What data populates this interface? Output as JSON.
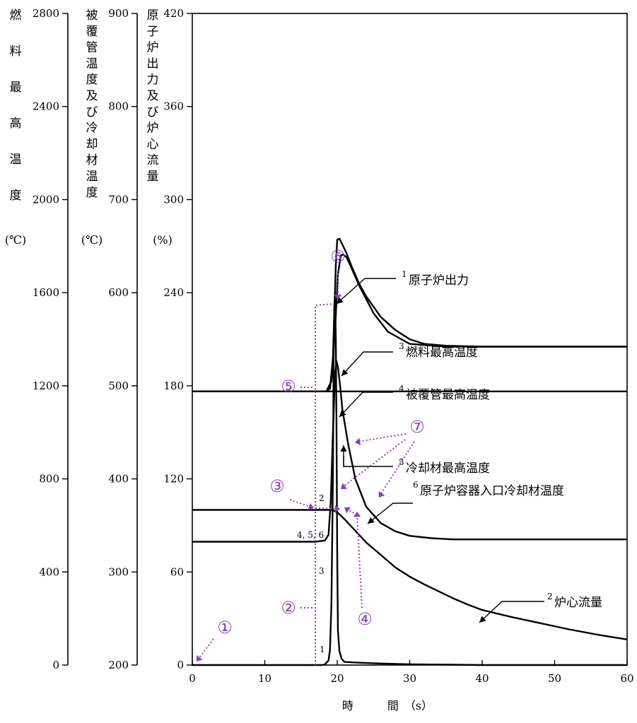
{
  "chart_data": {
    "type": "line",
    "xlabel": "時　　　間　（s）",
    "xlim": [
      0,
      60
    ],
    "x_ticks": [
      "0",
      "10",
      "20",
      "30",
      "40",
      "50",
      "60"
    ],
    "axes": {
      "fuel_temp": {
        "label": [
          "燃",
          "料",
          "最",
          "高",
          "温",
          "度"
        ],
        "unit": "(℃)",
        "range": [
          0,
          2800
        ],
        "ticks": [
          "0",
          "400",
          "800",
          "1200",
          "1600",
          "2000",
          "2400",
          "2800"
        ]
      },
      "clad_temp": {
        "label": [
          "被",
          "覆",
          "管",
          "温",
          "度",
          "及",
          "び",
          "冷",
          "却",
          "材",
          "温",
          "度"
        ],
        "unit": "(℃)",
        "range": [
          200,
          900
        ],
        "ticks": [
          "200",
          "300",
          "400",
          "500",
          "600",
          "700",
          "800",
          "900"
        ]
      },
      "power_flow": {
        "label": [
          "原",
          "子",
          "炉",
          "出",
          "力",
          "及",
          "び",
          "炉",
          "心",
          "流",
          "量"
        ],
        "unit": "(%)",
        "range": [
          0,
          420
        ],
        "ticks": [
          "0",
          "60",
          "120",
          "180",
          "240",
          "300",
          "360",
          "420"
        ]
      }
    },
    "series": [
      {
        "name": "原子炉出力",
        "num": "1",
        "axis": "power_flow",
        "x": [
          0,
          17.9,
          18.3,
          18.8,
          19.0,
          19.2,
          19.4,
          19.5,
          19.6,
          19.7,
          19.8,
          19.9,
          20.0,
          20.1,
          20.3,
          20.6,
          21,
          23,
          26,
          30,
          40,
          60
        ],
        "y": [
          0,
          0,
          0.4,
          3,
          10,
          40,
          120,
          197,
          232,
          236,
          210,
          150,
          70,
          22,
          9,
          4,
          2,
          1.5,
          1,
          0.5,
          0,
          0
        ]
      },
      {
        "name": "炉心流量",
        "num": "2",
        "axis": "power_flow",
        "x": [
          0,
          18.5,
          19.3,
          20,
          21,
          22,
          23,
          24,
          25,
          26,
          27,
          28,
          30,
          32,
          34,
          36,
          38,
          40,
          44,
          48,
          52,
          56,
          60
        ],
        "y": [
          100,
          100,
          100,
          98.5,
          94,
          89,
          84,
          79,
          75,
          71,
          67,
          63,
          57,
          52,
          47.5,
          43,
          39,
          35.5,
          31,
          27,
          23,
          19.5,
          16.5
        ]
      },
      {
        "name": "燃料最高温度",
        "num": "3",
        "axis": "fuel_temp",
        "x": [
          0,
          17,
          18.3,
          18.8,
          19.1,
          19.4,
          19.7,
          19.9,
          20.1,
          20.4,
          20.7,
          21.5,
          22.5,
          24,
          26,
          28,
          30,
          33,
          36,
          40,
          50,
          60
        ],
        "y": [
          530,
          530,
          535,
          560,
          700,
          1000,
          1250,
          1305,
          1280,
          1200,
          1100,
          950,
          800,
          680,
          610,
          575,
          555,
          545,
          540,
          540,
          540,
          540
        ]
      },
      {
        "name": "被覆管最高温度",
        "num": "4",
        "axis": "clad_temp",
        "x": [
          0,
          18.5,
          19.0,
          19.4,
          19.6,
          19.8,
          20.0,
          20.3,
          20.7,
          21.3,
          22,
          23,
          24,
          26,
          28,
          30,
          32,
          35,
          40,
          50,
          60
        ],
        "y": [
          494,
          494,
          497,
          530,
          580,
          630,
          657,
          658,
          652,
          642,
          628,
          610,
          596,
          574,
          560,
          550,
          545,
          543,
          542,
          542,
          542
        ]
      },
      {
        "name": "冷却材最高温度",
        "num": "5",
        "axis": "clad_temp",
        "x": [
          0,
          18.5,
          19.2,
          19.7,
          20.1,
          20.5,
          20.8,
          21.3,
          22,
          23,
          25,
          27,
          30,
          35,
          40,
          50,
          60
        ],
        "y": [
          494,
          494,
          505,
          560,
          620,
          640,
          641,
          638,
          626,
          608,
          578,
          558,
          545,
          542,
          542,
          542,
          542
        ]
      },
      {
        "name": "原子炉容器入口冷却材温度",
        "num": "6",
        "axis": "clad_temp",
        "x": [
          0,
          60
        ],
        "y": [
          494,
          494
        ]
      }
    ],
    "markers": [
      {
        "label": "①"
      },
      {
        "label": "②"
      },
      {
        "label": "③"
      },
      {
        "label": "④"
      },
      {
        "label": "⑤"
      },
      {
        "label": "⑥"
      },
      {
        "label": "⑦"
      }
    ],
    "inline_labels": {
      "one": "1",
      "two": "2",
      "three": "3",
      "combo": "4, 5, 6"
    },
    "colors": {
      "line": "#000000",
      "marker": "#8a3fc7"
    }
  }
}
